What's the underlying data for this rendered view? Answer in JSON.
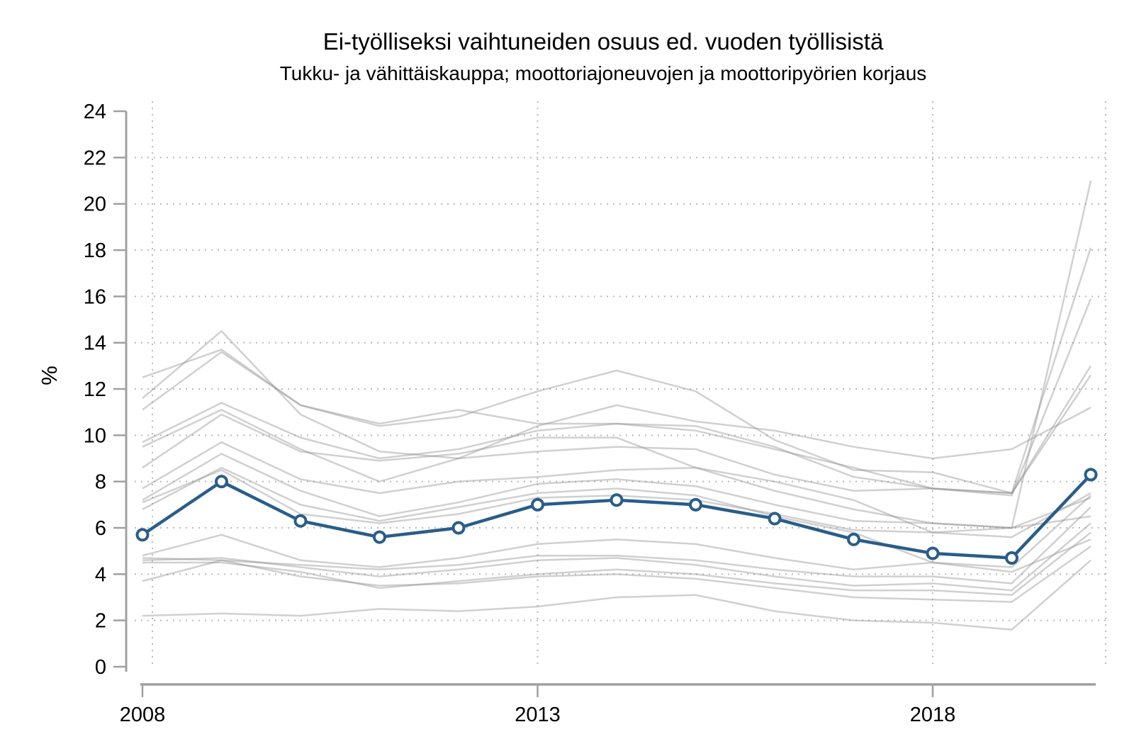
{
  "chart_data": {
    "type": "line",
    "title": "Ei-työlliseksi vaihtuneiden osuus ed. vuoden työllisistä",
    "subtitle": "Tukku- ja vähittäiskauppa; moottoriajoneuvojen ja moottoripyörien korjaus",
    "ylabel": "%",
    "xlabel": "",
    "x": [
      2008,
      2009,
      2010,
      2011,
      2012,
      2013,
      2014,
      2015,
      2016,
      2017,
      2018,
      2019,
      2020
    ],
    "x_tick_labels": [
      "2008",
      "2013",
      "2018"
    ],
    "x_tick_years": [
      2008,
      2013,
      2018
    ],
    "y_ticks": [
      0,
      2,
      4,
      6,
      8,
      10,
      12,
      14,
      16,
      18,
      20,
      22,
      24
    ],
    "ylim": [
      0,
      24
    ],
    "grid": "dotted",
    "legend": "none",
    "colors": {
      "highlight": "#295d8a",
      "marker_fill": "#ffffff",
      "background_line": "#8f8f8f",
      "gridline": "#b3b3b3",
      "axis": "#a0a0a0",
      "text": "#000000"
    },
    "series": [
      {
        "name": "highlighted-industry",
        "role": "highlight",
        "values": [
          5.7,
          8.0,
          6.3,
          5.6,
          6.0,
          7.0,
          7.2,
          7.0,
          6.4,
          5.5,
          4.9,
          4.7,
          8.3
        ]
      },
      {
        "name": "background-01",
        "role": "background",
        "values": [
          12.5,
          13.7,
          11.3,
          10.4,
          10.8,
          11.9,
          12.8,
          11.9,
          9.8,
          8.5,
          8.4,
          7.5,
          13.0
        ]
      },
      {
        "name": "background-02",
        "role": "background",
        "values": [
          11.6,
          14.5,
          10.9,
          9.3,
          9.0,
          10.4,
          11.3,
          10.6,
          10.2,
          9.5,
          9.0,
          9.4,
          11.2
        ]
      },
      {
        "name": "background-03",
        "role": "background",
        "values": [
          11.1,
          13.6,
          11.3,
          10.5,
          11.1,
          10.5,
          10.5,
          10.4,
          9.5,
          8.2,
          7.7,
          7.5,
          12.6
        ]
      },
      {
        "name": "background-04",
        "role": "background",
        "values": [
          9.7,
          11.4,
          9.9,
          9.0,
          9.4,
          10.2,
          10.5,
          10.2,
          9.4,
          8.6,
          7.7,
          7.4,
          15.9
        ]
      },
      {
        "name": "background-05",
        "role": "background",
        "values": [
          9.5,
          11.1,
          9.4,
          8.0,
          9.0,
          9.3,
          9.5,
          9.4,
          8.3,
          7.6,
          7.7,
          7.5,
          18.1
        ]
      },
      {
        "name": "background-06",
        "role": "background",
        "values": [
          8.6,
          10.9,
          9.3,
          8.9,
          9.2,
          9.9,
          9.9,
          8.6,
          7.6,
          6.8,
          6.2,
          6.0,
          21.0
        ]
      },
      {
        "name": "background-07",
        "role": "background",
        "values": [
          7.7,
          9.7,
          8.1,
          7.5,
          8.0,
          8.2,
          8.5,
          8.6,
          8.0,
          7.2,
          5.8,
          6.0,
          6.5
        ]
      },
      {
        "name": "background-08",
        "role": "background",
        "values": [
          7.2,
          9.2,
          7.6,
          6.5,
          7.1,
          7.9,
          8.1,
          7.8,
          7.0,
          6.3,
          6.2,
          6.0,
          7.3
        ]
      },
      {
        "name": "background-09",
        "role": "background",
        "values": [
          7.1,
          8.5,
          6.6,
          6.2,
          6.6,
          7.3,
          7.4,
          7.2,
          6.6,
          5.9,
          5.8,
          5.6,
          7.5
        ]
      },
      {
        "name": "background-10",
        "role": "background",
        "values": [
          6.8,
          8.6,
          7.0,
          6.3,
          6.9,
          7.5,
          7.7,
          7.4,
          6.5,
          5.8,
          4.5,
          4.3,
          7.4
        ]
      },
      {
        "name": "background-11",
        "role": "background",
        "values": [
          4.8,
          5.7,
          4.6,
          4.3,
          4.7,
          5.3,
          5.5,
          5.3,
          4.7,
          4.2,
          4.5,
          4.1,
          5.5
        ]
      },
      {
        "name": "background-12",
        "role": "background",
        "values": [
          4.7,
          4.6,
          4.4,
          4.2,
          4.4,
          4.8,
          4.8,
          4.6,
          4.2,
          3.9,
          3.9,
          3.6,
          6.9
        ]
      },
      {
        "name": "background-13",
        "role": "background",
        "values": [
          4.6,
          4.7,
          4.3,
          3.9,
          4.2,
          4.6,
          4.7,
          4.4,
          3.9,
          3.5,
          3.6,
          3.3,
          6.2
        ]
      },
      {
        "name": "background-14",
        "role": "background",
        "values": [
          4.5,
          4.5,
          4.1,
          3.4,
          3.7,
          4.0,
          4.2,
          4.0,
          3.6,
          3.3,
          3.3,
          3.1,
          5.8
        ]
      },
      {
        "name": "background-15",
        "role": "background",
        "values": [
          3.7,
          4.6,
          3.9,
          3.5,
          3.6,
          3.9,
          4.0,
          3.8,
          3.4,
          3.0,
          2.9,
          2.8,
          5.2
        ]
      },
      {
        "name": "background-16",
        "role": "background",
        "values": [
          2.2,
          2.3,
          2.2,
          2.5,
          2.4,
          2.6,
          3.0,
          3.1,
          2.4,
          2.0,
          1.9,
          1.6,
          4.6
        ]
      }
    ]
  }
}
